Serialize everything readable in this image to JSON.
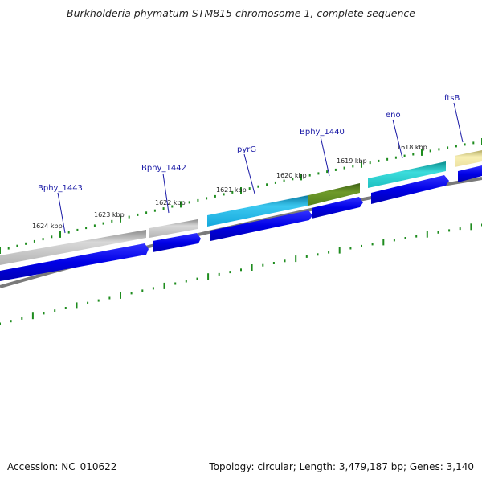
{
  "title": "Burkholderia phymatum STM815 chromosome 1, complete sequence",
  "footer": {
    "accession": "Accession: NC_010622",
    "summary": "Topology: circular; Length: 3,479,187 bp; Genes: 3,140"
  },
  "colors": {
    "backbone": "#808080",
    "cds": "#0000e6",
    "tick": "#1e8c1e",
    "label": "#1a1aa6",
    "gene_gray": "#c8c8c8",
    "gene_cyan": "#19b4e6",
    "gene_olive": "#5a8c23",
    "gene_teal": "#1ec8c8",
    "gene_yellow": "#f0e6a0"
  },
  "genes": [
    {
      "name": "Bphy_1443"
    },
    {
      "name": "Bphy_1442"
    },
    {
      "name": "pyrG"
    },
    {
      "name": "Bphy_1440"
    },
    {
      "name": "eno"
    },
    {
      "name": "ftsB"
    }
  ],
  "scale_labels": [
    "1624 kbp",
    "1623 kbp",
    "1622 kbp",
    "1621 kbp",
    "1620 kbp",
    "1619 kbp",
    "1618 kbp"
  ]
}
